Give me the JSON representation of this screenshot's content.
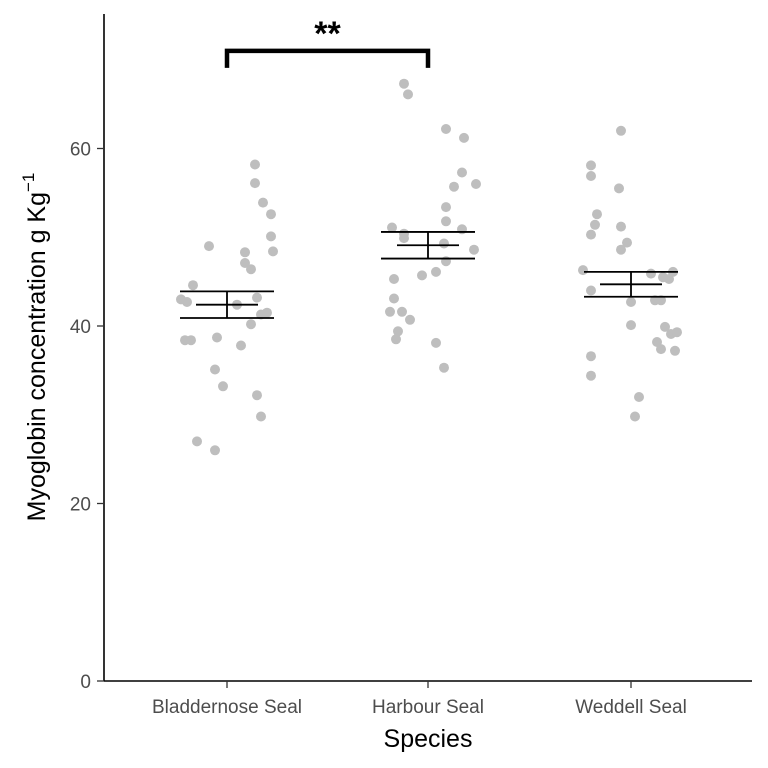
{
  "chart_data": {
    "type": "scatter",
    "xlabel": "Species",
    "ylabel": "Myoglobin concentration g Kg",
    "ylabel_superscript": "−1",
    "categories": [
      "Bladdernose Seal",
      "Harbour Seal",
      "Weddell Seal"
    ],
    "ylim": [
      0,
      75
    ],
    "yticks": [
      "0",
      "20",
      "40",
      "60"
    ],
    "grid": false,
    "point_color": "#bebebe",
    "series": [
      {
        "category": "Bladdernose Seal",
        "summary": {
          "mean": 42.4,
          "se_low": 40.9,
          "se_high": 43.9
        },
        "points": [
          {
            "x": -0.23,
            "y": 43.0
          },
          {
            "x": -0.2,
            "y": 42.7
          },
          {
            "x": -0.17,
            "y": 44.6
          },
          {
            "x": -0.18,
            "y": 38.4
          },
          {
            "x": -0.21,
            "y": 38.4
          },
          {
            "x": -0.09,
            "y": 49.0
          },
          {
            "x": -0.05,
            "y": 38.7
          },
          {
            "x": -0.06,
            "y": 35.1
          },
          {
            "x": -0.02,
            "y": 33.2
          },
          {
            "x": -0.15,
            "y": 27.0
          },
          {
            "x": -0.06,
            "y": 26.0
          },
          {
            "x": 0.05,
            "y": 42.4
          },
          {
            "x": 0.07,
            "y": 37.8
          },
          {
            "x": 0.09,
            "y": 47.1
          },
          {
            "x": 0.09,
            "y": 48.3
          },
          {
            "x": 0.12,
            "y": 46.4
          },
          {
            "x": 0.12,
            "y": 40.2
          },
          {
            "x": 0.15,
            "y": 43.2
          },
          {
            "x": 0.15,
            "y": 32.2
          },
          {
            "x": 0.17,
            "y": 29.8
          },
          {
            "x": 0.17,
            "y": 41.3
          },
          {
            "x": 0.2,
            "y": 41.5
          },
          {
            "x": 0.14,
            "y": 58.2
          },
          {
            "x": 0.14,
            "y": 56.1
          },
          {
            "x": 0.18,
            "y": 53.9
          },
          {
            "x": 0.22,
            "y": 52.6
          },
          {
            "x": 0.22,
            "y": 50.1
          },
          {
            "x": 0.23,
            "y": 48.4
          }
        ]
      },
      {
        "category": "Harbour Seal",
        "summary": {
          "mean": 49.1,
          "se_low": 47.6,
          "se_high": 50.6
        },
        "points": [
          {
            "x": -0.12,
            "y": 67.3
          },
          {
            "x": -0.1,
            "y": 66.1
          },
          {
            "x": -0.18,
            "y": 51.1
          },
          {
            "x": -0.12,
            "y": 50.4
          },
          {
            "x": -0.12,
            "y": 49.9
          },
          {
            "x": -0.17,
            "y": 45.3
          },
          {
            "x": -0.17,
            "y": 43.1
          },
          {
            "x": -0.19,
            "y": 41.6
          },
          {
            "x": -0.13,
            "y": 41.6
          },
          {
            "x": -0.09,
            "y": 40.7
          },
          {
            "x": -0.15,
            "y": 39.4
          },
          {
            "x": -0.16,
            "y": 38.5
          },
          {
            "x": 0.04,
            "y": 38.1
          },
          {
            "x": 0.08,
            "y": 35.3
          },
          {
            "x": -0.03,
            "y": 45.7
          },
          {
            "x": 0.04,
            "y": 46.1
          },
          {
            "x": 0.09,
            "y": 47.3
          },
          {
            "x": 0.08,
            "y": 49.3
          },
          {
            "x": 0.09,
            "y": 51.8
          },
          {
            "x": 0.09,
            "y": 53.4
          },
          {
            "x": 0.13,
            "y": 55.7
          },
          {
            "x": 0.17,
            "y": 57.3
          },
          {
            "x": 0.09,
            "y": 62.2
          },
          {
            "x": 0.18,
            "y": 61.2
          },
          {
            "x": 0.24,
            "y": 56.0
          },
          {
            "x": 0.17,
            "y": 50.9
          },
          {
            "x": 0.23,
            "y": 48.6
          }
        ]
      },
      {
        "category": "Weddell Seal",
        "summary": {
          "mean": 44.7,
          "se_low": 43.3,
          "se_high": 46.1
        },
        "points": [
          {
            "x": -0.2,
            "y": 58.1
          },
          {
            "x": -0.2,
            "y": 56.9
          },
          {
            "x": -0.17,
            "y": 52.6
          },
          {
            "x": -0.18,
            "y": 51.4
          },
          {
            "x": -0.2,
            "y": 50.3
          },
          {
            "x": -0.24,
            "y": 46.3
          },
          {
            "x": -0.2,
            "y": 44.0
          },
          {
            "x": -0.2,
            "y": 36.6
          },
          {
            "x": -0.2,
            "y": 34.4
          },
          {
            "x": -0.06,
            "y": 55.5
          },
          {
            "x": -0.05,
            "y": 51.2
          },
          {
            "x": -0.02,
            "y": 49.4
          },
          {
            "x": -0.05,
            "y": 48.6
          },
          {
            "x": 0.0,
            "y": 42.7
          },
          {
            "x": 0.0,
            "y": 40.1
          },
          {
            "x": 0.02,
            "y": 29.8
          },
          {
            "x": 0.04,
            "y": 32.0
          },
          {
            "x": -0.05,
            "y": 62.0
          },
          {
            "x": 0.1,
            "y": 45.9
          },
          {
            "x": 0.12,
            "y": 42.9
          },
          {
            "x": 0.15,
            "y": 42.9
          },
          {
            "x": 0.16,
            "y": 45.5
          },
          {
            "x": 0.19,
            "y": 45.3
          },
          {
            "x": 0.21,
            "y": 46.1
          },
          {
            "x": 0.17,
            "y": 39.9
          },
          {
            "x": 0.2,
            "y": 39.1
          },
          {
            "x": 0.23,
            "y": 39.3
          },
          {
            "x": 0.13,
            "y": 38.2
          },
          {
            "x": 0.15,
            "y": 37.4
          },
          {
            "x": 0.22,
            "y": 37.2
          }
        ]
      }
    ],
    "annotations": [
      {
        "type": "significance-bracket",
        "from": "Bladdernose Seal",
        "to": "Harbour Seal",
        "y": 71,
        "label": "**"
      }
    ]
  }
}
